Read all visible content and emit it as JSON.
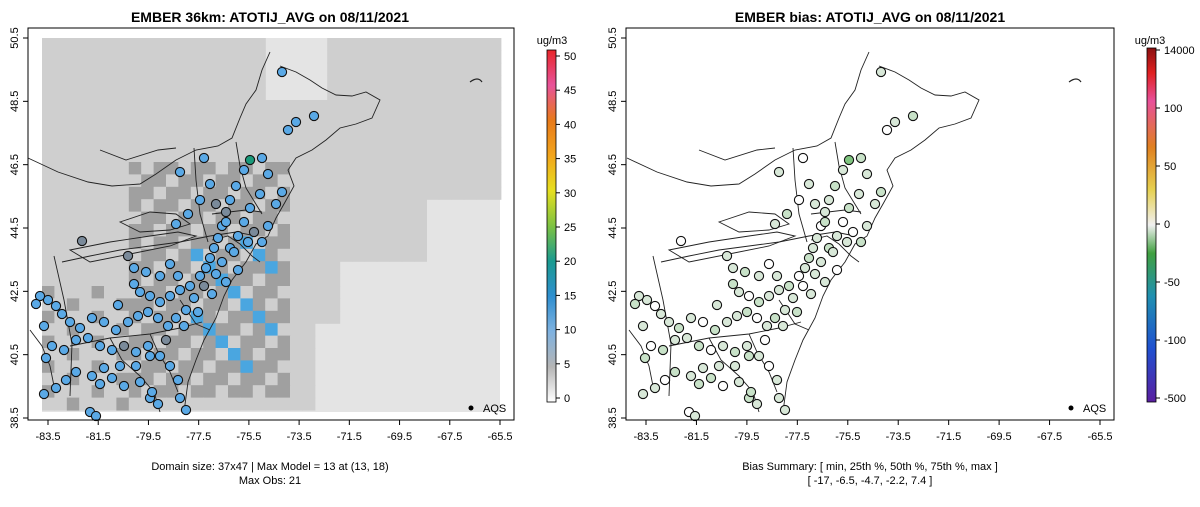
{
  "left_panel": {
    "title": "EMBER 36km: ATOTIJ_AVG on 08/11/2021",
    "x_ticks": [
      "-83.5",
      "-81.5",
      "-79.5",
      "-77.5",
      "-75.5",
      "-73.5",
      "-71.5",
      "-69.5",
      "-67.5",
      "-65.5"
    ],
    "y_ticks": [
      "38.5",
      "40.5",
      "42.5",
      "44.5",
      "46.5",
      "48.5",
      "50.5"
    ],
    "legend_text": "AQS",
    "footer_line1": "Domain size: 37x47 | Max Model = 13 at (13, 18)",
    "footer_line2": "Max Obs: 21",
    "colorbar": {
      "unit": "ug/m3",
      "labels": [
        "50",
        "45",
        "40",
        "35",
        "30",
        "25",
        "20",
        "15",
        "10",
        "5",
        "0"
      ]
    }
  },
  "right_panel": {
    "title": "EMBER bias: ATOTIJ_AVG on 08/11/2021",
    "x_ticks": [
      "-83.5",
      "-81.5",
      "-79.5",
      "-77.5",
      "-75.5",
      "-73.5",
      "-71.5",
      "-69.5",
      "-67.5",
      "-65.5"
    ],
    "y_ticks": [
      "38.5",
      "40.5",
      "42.5",
      "44.5",
      "46.5",
      "48.5",
      "50.5"
    ],
    "legend_text": "AQS",
    "footer_line1": "Bias Summary: [ min, 25th %, 50th %, 75th %, max ]",
    "footer_line2": "[ -17,   -6.5,   -4.7,   -2.2,   7.4 ]",
    "colorbar": {
      "unit": "ug/m3",
      "labels": [
        "14000",
        "100",
        "50",
        "0",
        "-50",
        "-100",
        "-500"
      ]
    }
  },
  "colors": {
    "obs_fill": "#5aa9e6",
    "bias_fill": "#d8e8d8",
    "model_high": "#4aa6e0",
    "model_mid": "#a0a0a0",
    "model_low": "#cfcfcf",
    "model_bg": "#e4e4e4"
  }
}
